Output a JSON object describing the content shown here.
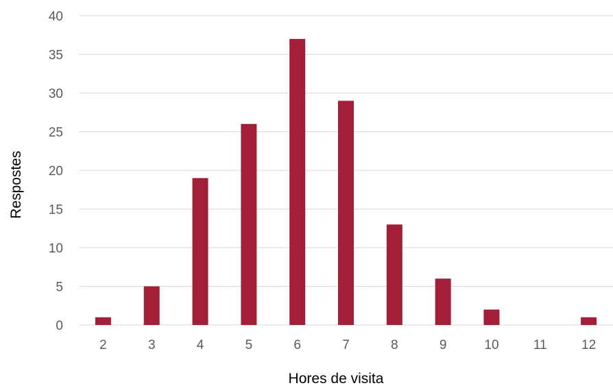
{
  "chart_data": {
    "type": "bar",
    "title": "",
    "xlabel": "Hores de visita",
    "ylabel": "Respostes",
    "categories": [
      "2",
      "3",
      "4",
      "5",
      "6",
      "7",
      "8",
      "9",
      "10",
      "11",
      "12"
    ],
    "values": [
      1,
      5,
      19,
      26,
      37,
      29,
      13,
      6,
      2,
      0,
      1
    ],
    "ylim": [
      0,
      40
    ],
    "yticks": [
      0,
      5,
      10,
      15,
      20,
      25,
      30,
      35,
      40
    ],
    "grid": true,
    "legend": "none",
    "bar_color": "#a31f37",
    "grid_color": "#d9d9d9"
  }
}
